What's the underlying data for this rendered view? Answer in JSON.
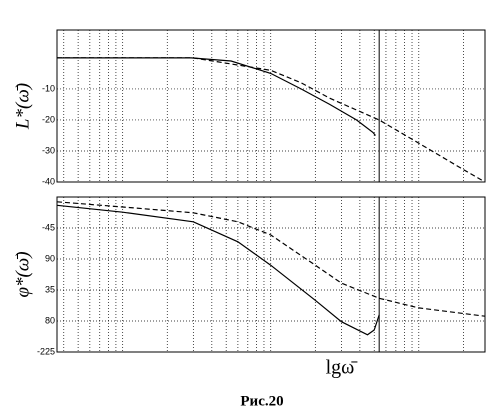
{
  "caption": "Рис.20",
  "chart_data": [
    {
      "type": "line",
      "ylabel": "L*(ω̄)",
      "xscale": "log",
      "grid": true,
      "xlim": [
        0.036,
        28
      ],
      "ylim": [
        -40,
        9
      ],
      "xticks": [
        0.04,
        0.05,
        0.06,
        0.07,
        0.08,
        0.09,
        0.1,
        0.2,
        0.3,
        0.4,
        0.5,
        0.6,
        0.7,
        0.8,
        0.9,
        1,
        2,
        3,
        4,
        5,
        6,
        7,
        8,
        9,
        10,
        20
      ],
      "yticks": [
        -10,
        -20,
        -30,
        -40
      ],
      "vline": 5.4,
      "series": [
        {
          "color": "#000000",
          "dash": false,
          "x": [
            0.036,
            0.29,
            0.54,
            1,
            1.6,
            2.5,
            3.8,
            4.9,
            5.1
          ],
          "values": [
            0,
            0,
            -1,
            -5,
            -10,
            -15,
            -20,
            -24,
            -25
          ]
        },
        {
          "color": "#000000",
          "dash": true,
          "x": [
            0.036,
            0.3,
            1,
            1.6,
            2.5,
            5.4,
            10,
            20,
            28
          ],
          "values": [
            0,
            0,
            -4,
            -8,
            -13,
            -20,
            -27.5,
            -36,
            -40
          ]
        }
      ]
    },
    {
      "type": "line",
      "ylabel": "φ*(ω̄)",
      "xlabel": "lgω̄",
      "xscale": "log",
      "grid": true,
      "xlim": [
        0.036,
        28
      ],
      "ylim": [
        -225,
        0
      ],
      "xticks": [
        0.04,
        0.05,
        0.06,
        0.07,
        0.08,
        0.09,
        0.1,
        0.2,
        0.3,
        0.4,
        0.5,
        0.6,
        0.7,
        0.8,
        0.9,
        1,
        2,
        3,
        4,
        5,
        6,
        7,
        8,
        9,
        10,
        20
      ],
      "yticks": [
        -45,
        {
          "value": -90,
          "label": "90"
        },
        {
          "value": -135,
          "label": "35"
        },
        {
          "value": -180,
          "label": "80"
        },
        -225
      ],
      "vline": 5.4,
      "series": [
        {
          "color": "#000000",
          "dash": false,
          "x": [
            0.036,
            0.1,
            0.3,
            0.6,
            1,
            2,
            3,
            4.5,
            5,
            5.4
          ],
          "values": [
            -12,
            -22,
            -36,
            -65,
            -99,
            -150,
            -181,
            -200,
            -193,
            -171
          ]
        },
        {
          "color": "#000000",
          "dash": true,
          "x": [
            0.036,
            0.1,
            0.3,
            0.6,
            1,
            2,
            3,
            5.4,
            10,
            28
          ],
          "values": [
            -7,
            -14.5,
            -23,
            -36,
            -55,
            -99,
            -125,
            -147,
            -161,
            -173
          ]
        }
      ]
    }
  ]
}
